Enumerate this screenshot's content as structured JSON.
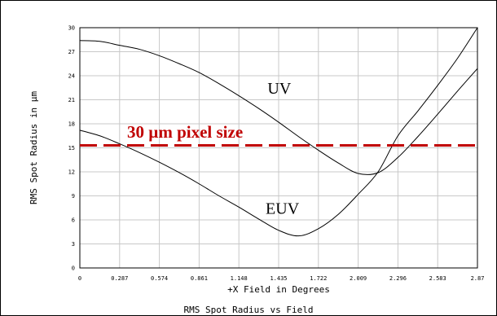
{
  "chart_data": {
    "type": "line",
    "title": "RMS Spot Radius vs Field",
    "xlabel": "+X Field in Degrees",
    "ylabel": "RMS Spot Radius in µm",
    "xlim": [
      0,
      2.87
    ],
    "ylim": [
      0,
      30
    ],
    "x_ticks": [
      "0",
      "0.287",
      "0.574",
      "0.861",
      "1.148",
      "1.435",
      "1.722",
      "2.009",
      "2.296",
      "2.583",
      "2.87"
    ],
    "y_ticks": [
      "0",
      "3",
      "6",
      "9",
      "12",
      "15",
      "18",
      "21",
      "24",
      "27",
      "30"
    ],
    "grid": true,
    "series": [
      {
        "name": "UV",
        "x": [
          0,
          0.144,
          0.287,
          0.431,
          0.574,
          0.718,
          0.861,
          1.005,
          1.148,
          1.292,
          1.435,
          1.579,
          1.722,
          1.866,
          2.009,
          2.153,
          2.296,
          2.44,
          2.583,
          2.727,
          2.87
        ],
        "y": [
          28.4,
          28.3,
          27.8,
          27.3,
          26.5,
          25.5,
          24.4,
          23.0,
          21.5,
          19.9,
          18.2,
          16.4,
          14.7,
          13.1,
          11.8,
          11.9,
          13.8,
          16.4,
          19.2,
          22.1,
          24.9
        ],
        "color": "#000000"
      },
      {
        "name": "EUV",
        "x": [
          0,
          0.144,
          0.287,
          0.431,
          0.574,
          0.718,
          0.861,
          1.005,
          1.148,
          1.292,
          1.435,
          1.579,
          1.722,
          1.866,
          2.009,
          2.153,
          2.296,
          2.44,
          2.583,
          2.727,
          2.87
        ],
        "y": [
          17.2,
          16.5,
          15.5,
          14.4,
          13.2,
          11.9,
          10.5,
          9.0,
          7.6,
          6.1,
          4.7,
          4.0,
          4.9,
          6.7,
          9.2,
          12.0,
          16.5,
          19.6,
          22.8,
          26.2,
          30.0
        ],
        "color": "#000000"
      }
    ],
    "reference_line": {
      "label": "30 µm pixel size",
      "y": 15.3,
      "color": "#c00000",
      "style": "dashed"
    },
    "annotations": [
      {
        "text": "UV",
        "x": 1.44,
        "y": 22.5
      },
      {
        "text": "EUV",
        "x": 1.462,
        "y": 7.5
      }
    ]
  }
}
